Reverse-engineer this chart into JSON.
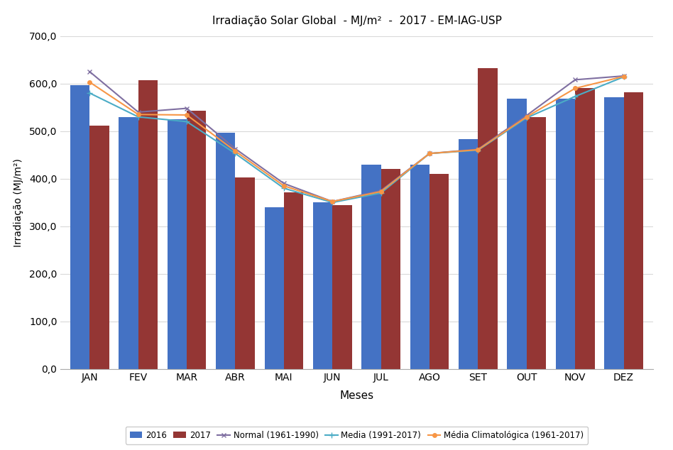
{
  "title": "Irradiação Solar Global  - MJ/m²  -  2017 - EM-IAG-USP",
  "xlabel": "Meses",
  "ylabel": "Irradiação (MJ/m²)",
  "months": [
    "JAN",
    "FEV",
    "MAR",
    "ABR",
    "MAI",
    "JUN",
    "JUL",
    "AGO",
    "SET",
    "OUT",
    "NOV",
    "DEZ"
  ],
  "bar_2016": [
    597,
    530,
    525,
    497,
    340,
    350,
    430,
    430,
    483,
    568,
    568,
    572
  ],
  "bar_2017": [
    512,
    607,
    543,
    402,
    372,
    345,
    420,
    410,
    632,
    530,
    590,
    582
  ],
  "normal_1961_1990": [
    625,
    540,
    548,
    463,
    390,
    352,
    375,
    453,
    462,
    533,
    608,
    616
  ],
  "media_1991_2017": [
    580,
    530,
    520,
    453,
    380,
    350,
    370,
    453,
    460,
    528,
    573,
    614
  ],
  "media_climatologica_1961_2017": [
    603,
    535,
    534,
    458,
    385,
    352,
    373,
    453,
    461,
    530,
    590,
    615
  ],
  "bar_2016_color": "#4472C4",
  "bar_2017_color": "#943634",
  "normal_color": "#7F6FA1",
  "media_color": "#4BACC6",
  "media_clim_color": "#F79646",
  "ylim": [
    0,
    700
  ],
  "yticks": [
    0,
    100,
    200,
    300,
    400,
    500,
    600,
    700
  ],
  "legend_labels": [
    "2016",
    "2017",
    "Normal (1961-1990)",
    "Media (1991-2017)",
    "Média Climatológica (1961-2017)"
  ],
  "background_color": "#FFFFFF",
  "grid_color": "#D9D9D9",
  "plot_bg_color": "#FFFFFF"
}
